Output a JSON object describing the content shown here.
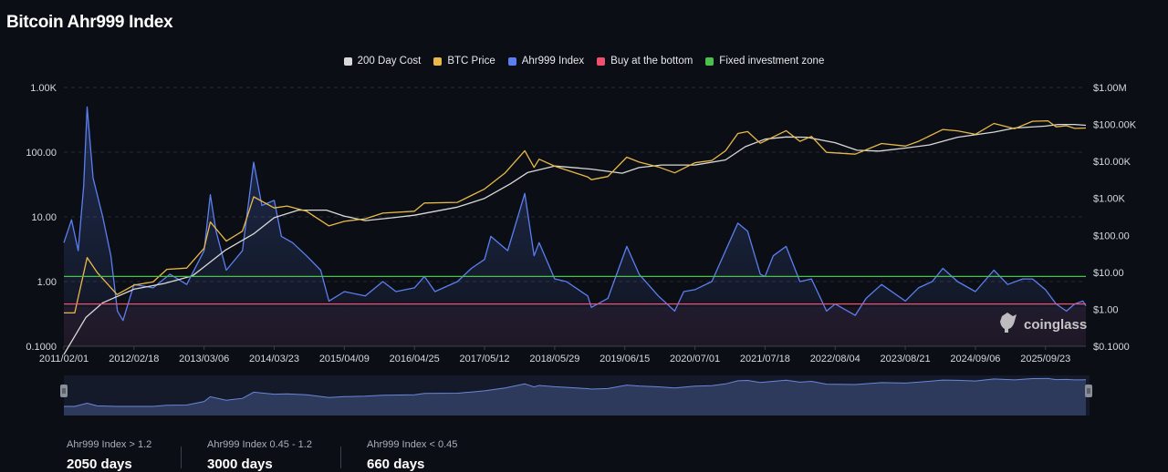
{
  "page": {
    "title": "Bitcoin Ahr999 Index",
    "watermark": "coinglass"
  },
  "legend": [
    {
      "label": "200 Day Cost",
      "color": "#d9d9d9"
    },
    {
      "label": "BTC Price",
      "color": "#e8b94a"
    },
    {
      "label": "Ahr999 Index",
      "color": "#5b7ff0"
    },
    {
      "label": "Buy at the bottom",
      "color": "#f0506e"
    },
    {
      "label": "Fixed investment zone",
      "color": "#4cc04c"
    }
  ],
  "stats": [
    {
      "label": "Ahr999 Index > 1.2",
      "value": "2050 days"
    },
    {
      "label": "Ahr999 Index 0.45 - 1.2",
      "value": "3000 days"
    },
    {
      "label": "Ahr999 Index < 0.45",
      "value": "660 days"
    }
  ],
  "chart_data": {
    "type": "line",
    "title": "Bitcoin Ahr999 Index",
    "x_tick_labels": [
      "2011/02/01",
      "2012/02/18",
      "2013/03/06",
      "2014/03/23",
      "2015/04/09",
      "2016/04/25",
      "2017/05/12",
      "2018/05/29",
      "2019/06/15",
      "2020/07/01",
      "2021/07/18",
      "2022/08/04",
      "2023/08/21",
      "2024/09/06",
      "2025/09/23"
    ],
    "x_range": [
      "2011/02/01",
      "2026/05/01"
    ],
    "y_left": {
      "scale": "log",
      "range": [
        0.1,
        1000
      ],
      "tick_labels": [
        "0.1000",
        "1.00",
        "10.00",
        "100.00",
        "1.00K"
      ],
      "tick_values": [
        0.1,
        1,
        10,
        100,
        1000
      ]
    },
    "y_right": {
      "scale": "log",
      "range": [
        0.1,
        1000000
      ],
      "tick_labels": [
        "$0.1000",
        "$1.00",
        "$10.00",
        "$100.00",
        "$1.00K",
        "$10.00K",
        "$100.00K",
        "$1.00M"
      ],
      "tick_values": [
        0.1,
        1,
        10,
        100,
        1000,
        10000,
        100000,
        1000000
      ]
    },
    "thresholds": [
      {
        "name": "Fixed investment zone",
        "value": 1.2,
        "color": "#4cc04c"
      },
      {
        "name": "Buy at the bottom",
        "value": 0.45,
        "color": "#f0506e"
      }
    ],
    "series": [
      {
        "name": "Ahr999 Index",
        "axis": "left",
        "color": "#5b7ff0",
        "points": [
          [
            "2011/02/01",
            4
          ],
          [
            "2011/03/15",
            9
          ],
          [
            "2011/04/20",
            3
          ],
          [
            "2011/05/20",
            30
          ],
          [
            "2011/06/08",
            500
          ],
          [
            "2011/07/10",
            40
          ],
          [
            "2011/09/01",
            10
          ],
          [
            "2011/10/15",
            2.5
          ],
          [
            "2011/11/20",
            0.35
          ],
          [
            "2011/12/20",
            0.25
          ],
          [
            "2012/02/18",
            0.9
          ],
          [
            "2012/06/01",
            0.8
          ],
          [
            "2012/09/01",
            1.3
          ],
          [
            "2012/12/01",
            0.9
          ],
          [
            "2013/03/06",
            3
          ],
          [
            "2013/04/09",
            22
          ],
          [
            "2013/05/10",
            6
          ],
          [
            "2013/07/05",
            1.5
          ],
          [
            "2013/10/01",
            3
          ],
          [
            "2013/12/01",
            70
          ],
          [
            "2014/01/15",
            15
          ],
          [
            "2014/03/23",
            18
          ],
          [
            "2014/05/01",
            5
          ],
          [
            "2014/07/01",
            4
          ],
          [
            "2014/09/15",
            2.5
          ],
          [
            "2014/12/01",
            1.5
          ],
          [
            "2015/01/15",
            0.5
          ],
          [
            "2015/04/09",
            0.7
          ],
          [
            "2015/08/01",
            0.6
          ],
          [
            "2015/11/05",
            1.0
          ],
          [
            "2016/01/15",
            0.7
          ],
          [
            "2016/04/25",
            0.8
          ],
          [
            "2016/06/18",
            1.2
          ],
          [
            "2016/08/15",
            0.7
          ],
          [
            "2016/12/15",
            1.0
          ],
          [
            "2017/03/01",
            1.6
          ],
          [
            "2017/05/12",
            2.2
          ],
          [
            "2017/06/15",
            5
          ],
          [
            "2017/09/15",
            3
          ],
          [
            "2017/12/17",
            23
          ],
          [
            "2018/02/06",
            2.5
          ],
          [
            "2018/03/05",
            4
          ],
          [
            "2018/05/29",
            1.1
          ],
          [
            "2018/08/01",
            1.0
          ],
          [
            "2018/11/25",
            0.6
          ],
          [
            "2018/12/15",
            0.4
          ],
          [
            "2019/03/15",
            0.55
          ],
          [
            "2019/06/26",
            3.5
          ],
          [
            "2019/09/01",
            1.3
          ],
          [
            "2019/12/15",
            0.6
          ],
          [
            "2020/03/13",
            0.35
          ],
          [
            "2020/05/01",
            0.7
          ],
          [
            "2020/07/01",
            0.75
          ],
          [
            "2020/10/01",
            1.0
          ],
          [
            "2020/12/15",
            3
          ],
          [
            "2021/02/20",
            8
          ],
          [
            "2021/04/14",
            6
          ],
          [
            "2021/06/22",
            1.3
          ],
          [
            "2021/07/18",
            1.2
          ],
          [
            "2021/09/01",
            2.5
          ],
          [
            "2021/11/10",
            3.5
          ],
          [
            "2022/01/24",
            1.0
          ],
          [
            "2022/03/28",
            1.1
          ],
          [
            "2022/06/18",
            0.35
          ],
          [
            "2022/08/04",
            0.45
          ],
          [
            "2022/11/21",
            0.3
          ],
          [
            "2023/01/20",
            0.55
          ],
          [
            "2023/04/14",
            0.9
          ],
          [
            "2023/08/21",
            0.5
          ],
          [
            "2023/11/01",
            0.8
          ],
          [
            "2024/01/15",
            1.0
          ],
          [
            "2024/03/13",
            1.6
          ],
          [
            "2024/06/01",
            1.0
          ],
          [
            "2024/09/06",
            0.7
          ],
          [
            "2024/12/16",
            1.5
          ],
          [
            "2025/03/01",
            0.9
          ],
          [
            "2025/05/22",
            1.1
          ],
          [
            "2025/07/14",
            1.1
          ],
          [
            "2025/09/23",
            0.75
          ],
          [
            "2025/11/20",
            0.45
          ],
          [
            "2026/01/15",
            0.35
          ],
          [
            "2026/03/01",
            0.45
          ],
          [
            "2026/04/15",
            0.5
          ],
          [
            "2026/05/01",
            0.42
          ]
        ]
      },
      {
        "name": "BTC Price",
        "axis": "right",
        "color": "#e8b94a",
        "points": [
          [
            "2011/02/01",
            0.8
          ],
          [
            "2011/04/01",
            0.8
          ],
          [
            "2011/06/08",
            25
          ],
          [
            "2011/08/01",
            10
          ],
          [
            "2011/11/18",
            2.5
          ],
          [
            "2012/02/18",
            4.5
          ],
          [
            "2012/06/01",
            5.5
          ],
          [
            "2012/08/15",
            12
          ],
          [
            "2012/12/01",
            13
          ],
          [
            "2013/03/06",
            45
          ],
          [
            "2013/04/09",
            230
          ],
          [
            "2013/07/05",
            70
          ],
          [
            "2013/10/01",
            130
          ],
          [
            "2013/12/01",
            1100
          ],
          [
            "2014/03/23",
            550
          ],
          [
            "2014/06/01",
            620
          ],
          [
            "2014/09/15",
            450
          ],
          [
            "2015/01/15",
            180
          ],
          [
            "2015/04/09",
            240
          ],
          [
            "2015/08/01",
            280
          ],
          [
            "2015/11/05",
            400
          ],
          [
            "2016/04/25",
            450
          ],
          [
            "2016/06/18",
            750
          ],
          [
            "2016/12/15",
            780
          ],
          [
            "2017/03/01",
            1200
          ],
          [
            "2017/05/12",
            1800
          ],
          [
            "2017/09/01",
            4900
          ],
          [
            "2017/12/17",
            19500
          ],
          [
            "2018/02/06",
            6900
          ],
          [
            "2018/03/05",
            11500
          ],
          [
            "2018/05/29",
            7400
          ],
          [
            "2018/11/25",
            3800
          ],
          [
            "2018/12/15",
            3200
          ],
          [
            "2019/03/15",
            3900
          ],
          [
            "2019/06/26",
            13000
          ],
          [
            "2019/09/01",
            9600
          ],
          [
            "2019/12/15",
            7100
          ],
          [
            "2020/03/13",
            4900
          ],
          [
            "2020/07/01",
            9200
          ],
          [
            "2020/10/01",
            10600
          ],
          [
            "2020/12/15",
            19400
          ],
          [
            "2021/02/20",
            57000
          ],
          [
            "2021/04/14",
            64000
          ],
          [
            "2021/06/22",
            31000
          ],
          [
            "2021/11/10",
            68000
          ],
          [
            "2022/01/24",
            35000
          ],
          [
            "2022/03/28",
            47500
          ],
          [
            "2022/06/18",
            17600
          ],
          [
            "2022/11/21",
            15700
          ],
          [
            "2023/04/14",
            30500
          ],
          [
            "2023/08/21",
            26000
          ],
          [
            "2023/11/01",
            35000
          ],
          [
            "2024/03/13",
            73000
          ],
          [
            "2024/06/01",
            67000
          ],
          [
            "2024/09/06",
            54000
          ],
          [
            "2024/12/16",
            106000
          ],
          [
            "2025/04/08",
            77000
          ],
          [
            "2025/07/14",
            122000
          ],
          [
            "2025/10/06",
            125000
          ],
          [
            "2025/11/20",
            86000
          ],
          [
            "2026/01/15",
            92000
          ],
          [
            "2026/03/01",
            78000
          ],
          [
            "2026/05/01",
            80000
          ]
        ]
      },
      {
        "name": "200 Day Cost",
        "axis": "right",
        "color": "#d9d9d9",
        "points": [
          [
            "2011/02/01",
            0.06
          ],
          [
            "2011/06/01",
            0.6
          ],
          [
            "2011/09/01",
            1.5
          ],
          [
            "2012/02/18",
            3.5
          ],
          [
            "2012/08/01",
            5
          ],
          [
            "2013/01/01",
            8
          ],
          [
            "2013/03/06",
            14
          ],
          [
            "2013/07/01",
            40
          ],
          [
            "2013/12/01",
            110
          ],
          [
            "2014/03/23",
            300
          ],
          [
            "2014/08/01",
            480
          ],
          [
            "2015/01/01",
            480
          ],
          [
            "2015/04/09",
            330
          ],
          [
            "2015/08/01",
            250
          ],
          [
            "2016/01/01",
            300
          ],
          [
            "2016/04/25",
            350
          ],
          [
            "2016/12/15",
            580
          ],
          [
            "2017/05/12",
            1000
          ],
          [
            "2017/10/01",
            2500
          ],
          [
            "2018/01/01",
            5000
          ],
          [
            "2018/05/29",
            7500
          ],
          [
            "2018/12/15",
            6200
          ],
          [
            "2019/06/01",
            4800
          ],
          [
            "2019/09/01",
            6800
          ],
          [
            "2020/01/01",
            8000
          ],
          [
            "2020/07/01",
            8000
          ],
          [
            "2020/12/15",
            11000
          ],
          [
            "2021/04/01",
            25000
          ],
          [
            "2021/07/18",
            40000
          ],
          [
            "2021/11/10",
            46000
          ],
          [
            "2022/03/01",
            45000
          ],
          [
            "2022/08/04",
            32000
          ],
          [
            "2022/12/01",
            20000
          ],
          [
            "2023/04/01",
            19000
          ],
          [
            "2023/08/21",
            23000
          ],
          [
            "2024/01/01",
            28000
          ],
          [
            "2024/06/01",
            45000
          ],
          [
            "2024/12/16",
            62000
          ],
          [
            "2025/04/08",
            80000
          ],
          [
            "2025/09/23",
            90000
          ],
          [
            "2025/12/01",
            100000
          ],
          [
            "2026/03/01",
            100000
          ],
          [
            "2026/05/01",
            95000
          ]
        ]
      }
    ],
    "navigator": {
      "series": "BTC Price",
      "range": [
        "2011/02/01",
        "2026/05/01"
      ]
    },
    "grid": true,
    "legend_position": "top-center"
  }
}
